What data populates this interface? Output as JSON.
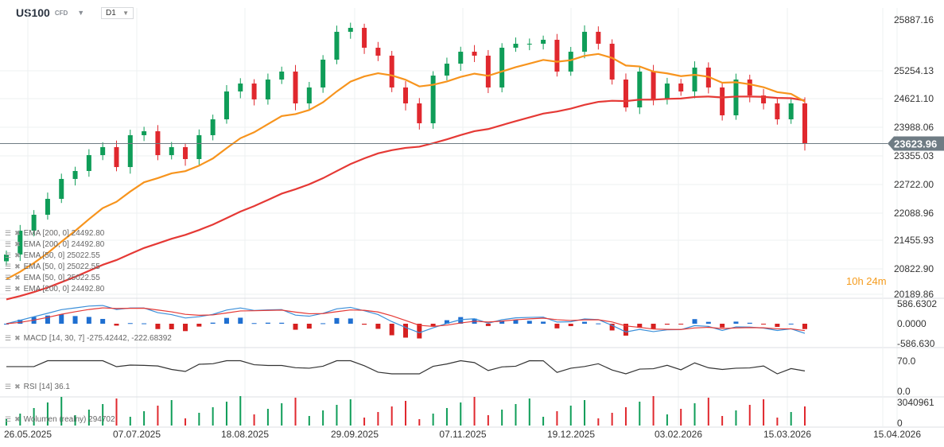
{
  "header": {
    "symbol": "US100",
    "type": "CFD",
    "timeframe": "D1"
  },
  "countdown": "10h 24m",
  "current_price": "23623.96",
  "price_axis": [
    "25887.16",
    "25254.13",
    "24621.10",
    "23988.06",
    "23355.03",
    "22722.00",
    "22088.96",
    "21455.93",
    "20822.90",
    "20189.86"
  ],
  "macd_axis": [
    "586.6302",
    "0.0000",
    "-586.630"
  ],
  "rsi_axis": [
    "70.0",
    "0.0"
  ],
  "volume_axis": [
    "3040961",
    "0"
  ],
  "date_axis": [
    "26.05.2025",
    "07.07.2025",
    "18.08.2025",
    "29.09.2025",
    "07.11.2025",
    "19.12.2025",
    "03.02.2026",
    "15.03.2026",
    "15.04.2026"
  ],
  "legends": {
    "ema": [
      "EMA [200, 0] 24492.80",
      "EMA [200, 0] 24492.80",
      "EMA [50, 0] 25022.55",
      "EMA [50, 0] 25022.55",
      "EMA [50, 0] 25022.55",
      "EMA [200, 0] 24492.80"
    ],
    "macd": "MACD [14, 30, 7] -275.42442, -222.68392",
    "rsi": "RSI [14] 36.1",
    "volume": "Wolumen (realny) 294702"
  },
  "colors": {
    "up": "#0f9d58",
    "down": "#e0282e",
    "ema50": "#f7941d",
    "ema200": "#e53935",
    "macd": "#3b8fd9",
    "signal": "#e53935",
    "rsi": "#333333"
  },
  "chart_data": {
    "type": "candlestick",
    "closes": [
      21151,
      21683,
      22038,
      22392,
      22836,
      23013,
      23367,
      23545,
      23101,
      23811,
      23899,
      23367,
      23545,
      23279,
      23811,
      24165,
      24786,
      24963,
      24609,
      25052,
      25229,
      24520,
      24875,
      25495,
      26116,
      26204,
      25761,
      25584,
      24875,
      24520,
      24077,
      25140,
      25406,
      25672,
      25584,
      24875,
      25761,
      25850,
      25850,
      25938,
      25229,
      25672,
      26116,
      25850,
      25052,
      24431,
      25229,
      24609,
      24963,
      24786,
      25318,
      24875,
      24254,
      25052,
      24697,
      24520,
      24165,
      24520,
      23624
    ],
    "ema50_last": 25022.55,
    "ema200_last": 24492.8,
    "ylim": [
      20189.86,
      26200
    ]
  }
}
